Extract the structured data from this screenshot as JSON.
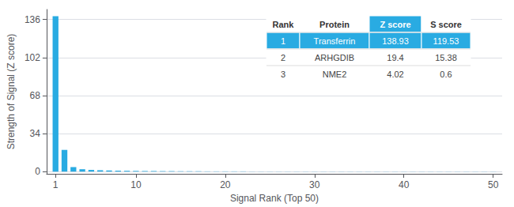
{
  "chart_data": {
    "type": "bar",
    "x": [
      1,
      2,
      3,
      4,
      5,
      6,
      7,
      8,
      9,
      10,
      11,
      12,
      13,
      14,
      15,
      16,
      17,
      18,
      19,
      20,
      21,
      22,
      23,
      24,
      25,
      26,
      27,
      28,
      29,
      30,
      31,
      32,
      33,
      34,
      35,
      36,
      37,
      38,
      39,
      40,
      41,
      42,
      43,
      44,
      45,
      46,
      47,
      48,
      49,
      50
    ],
    "values": [
      138.93,
      19.4,
      4.02,
      2.1,
      1.5,
      1.2,
      1.0,
      0.8,
      0.7,
      0.6,
      0.5,
      0.5,
      0.4,
      0.4,
      0.3,
      0.3,
      0.3,
      0.2,
      0.2,
      0.2,
      0.2,
      0.2,
      0.1,
      0.1,
      0.1,
      0.1,
      0.1,
      0.1,
      0.1,
      0.1,
      0.1,
      0.1,
      0.1,
      0.1,
      0.1,
      0.1,
      0.1,
      0.1,
      0.1,
      0.1,
      0.1,
      0.1,
      0.1,
      0.1,
      0.1,
      0.1,
      0.1,
      0.1,
      0.1,
      0.1
    ],
    "color": "#29abe2",
    "xlabel": "Signal Rank (Top 50)",
    "ylabel": "Strength of Signal (Z score)",
    "xlim": [
      0,
      51
    ],
    "xticks": [
      1,
      10,
      20,
      30,
      40,
      50
    ],
    "ylim": [
      -2,
      145
    ],
    "yticks": [
      0,
      34,
      68,
      102,
      136
    ],
    "grid": true,
    "table": [
      [
        "Rank",
        "Protein",
        "Z score",
        "S score"
      ],
      [
        "1",
        "Transferrin",
        "138.93",
        "119.53"
      ],
      [
        "2",
        "ARHGDIB",
        "19.4",
        "15.38"
      ],
      [
        "3",
        "NME2",
        "4.02",
        "0.6"
      ]
    ]
  }
}
